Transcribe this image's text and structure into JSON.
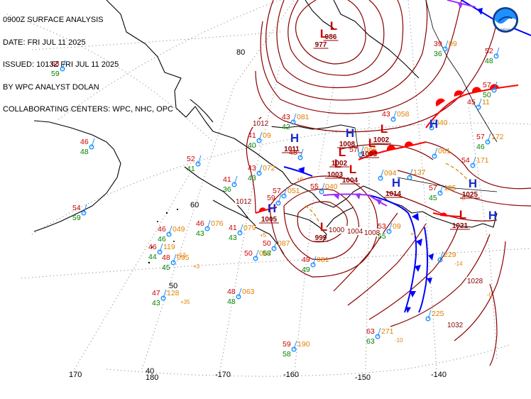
{
  "header": {
    "lines": [
      "0900Z SURFACE ANALYSIS",
      "DATE: FRI JUL 11 2025",
      "ISSUED: 1013Z FRI JUL 11 2025",
      "BY WPC ANALYST DOLAN",
      "COLLABORATING CENTERS: WPC, NHC, OPC"
    ]
  },
  "logo": {
    "name": "noaa-logo",
    "text": "NOAA"
  },
  "colors": {
    "isobar": "#8b0000",
    "high": "#1a2fc8",
    "low": "#cc0000",
    "cold_front": "#0000ff",
    "warm_front": "#ff0000",
    "occluded_front": "#9b30ff",
    "coast": "#000000",
    "grid": "#777777",
    "temp": "#cc0000",
    "dewpoint": "#008000",
    "pressure": "#e08000",
    "station": "#1e90ff"
  },
  "grid_labels": {
    "lat": [
      "80",
      "60",
      "50",
      "40"
    ],
    "lon": [
      "170",
      "180",
      "-170",
      "-160",
      "-150",
      "-140"
    ]
  },
  "pressure_centers": [
    {
      "kind": "L",
      "value": "977"
    },
    {
      "kind": "L",
      "value": "986"
    },
    {
      "kind": "H",
      "value": "1011"
    },
    {
      "kind": "H",
      "value": "1008"
    },
    {
      "kind": "L",
      "value": "1003"
    },
    {
      "kind": "L",
      "value": "1002"
    },
    {
      "kind": "L",
      "value": "1003"
    },
    {
      "kind": "L",
      "value": "1002"
    },
    {
      "kind": "L",
      "value": "1004"
    },
    {
      "kind": "H",
      "value": "1014"
    },
    {
      "kind": "H",
      "value": "1005"
    },
    {
      "kind": "L",
      "value": "999"
    },
    {
      "kind": "H",
      "value": "1025"
    },
    {
      "kind": "L",
      "value": "1021"
    },
    {
      "kind": "H",
      "value": ""
    },
    {
      "kind": "H",
      "value": ""
    }
  ],
  "isobar_labels": [
    "1012",
    "1012",
    "1000",
    "1004",
    "1008",
    "1028",
    "1032"
  ],
  "stations": [
    {
      "t": "63",
      "d": "59",
      "p": ""
    },
    {
      "t": "46",
      "d": "48",
      "p": ""
    },
    {
      "t": "54",
      "d": "59",
      "p": ""
    },
    {
      "t": "52",
      "d": "41",
      "p": ""
    },
    {
      "t": "41",
      "d": "36",
      "p": ""
    },
    {
      "t": "41",
      "d": "40",
      "p": "09"
    },
    {
      "t": "43",
      "d": "43",
      "p": "072"
    },
    {
      "t": "43",
      "d": "42",
      "p": "081"
    },
    {
      "t": "48",
      "d": "",
      "p": ""
    },
    {
      "t": "46",
      "d": "46",
      "p": "049"
    },
    {
      "t": "46",
      "d": "43",
      "p": "076"
    },
    {
      "t": "41",
      "d": "43",
      "p": "079"
    },
    {
      "t": "46",
      "d": "44",
      "p": "119"
    },
    {
      "t": "48",
      "d": "45",
      "p": "095"
    },
    {
      "t": "47",
      "d": "43",
      "p": "128"
    },
    {
      "t": "50",
      "d": "",
      "p": "067"
    },
    {
      "t": "50",
      "d": "58",
      "p": "087"
    },
    {
      "t": "57",
      "d": "",
      "p": "051"
    },
    {
      "t": "59",
      "d": "",
      "p": ""
    },
    {
      "t": "48",
      "d": "48",
      "p": "063"
    },
    {
      "t": "49",
      "d": "49",
      "p": "081"
    },
    {
      "t": "55",
      "d": "",
      "p": "040"
    },
    {
      "t": "57",
      "d": "",
      "p": "046"
    },
    {
      "t": "43",
      "d": "",
      "p": "058"
    },
    {
      "t": "53",
      "d": "55",
      "p": "09"
    },
    {
      "t": "63",
      "d": "63",
      "p": "271"
    },
    {
      "t": "59",
      "d": "58",
      "p": "190"
    },
    {
      "t": "57",
      "d": "45",
      "p": "195"
    },
    {
      "t": "57",
      "d": "46",
      "p": "172"
    },
    {
      "t": "54",
      "d": "",
      "p": "171"
    },
    {
      "t": "45",
      "d": "",
      "p": "11"
    },
    {
      "t": "39",
      "d": "36",
      "p": "09"
    },
    {
      "t": "52",
      "d": "48",
      "p": ""
    },
    {
      "t": "57",
      "d": "50",
      "p": ""
    },
    {
      "t": "",
      "d": "",
      "p": "229"
    },
    {
      "t": "",
      "d": "",
      "p": "225"
    },
    {
      "t": "",
      "d": "",
      "p": "137"
    },
    {
      "t": "",
      "d": "",
      "p": "094"
    },
    {
      "t": "",
      "d": "",
      "p": "040"
    },
    {
      "t": "",
      "d": "",
      "p": "061"
    }
  ],
  "tendencies": [
    "+12",
    "+3",
    "+35",
    "+5",
    "+6",
    "-10",
    "-14",
    "-8",
    "+1",
    "-0"
  ]
}
